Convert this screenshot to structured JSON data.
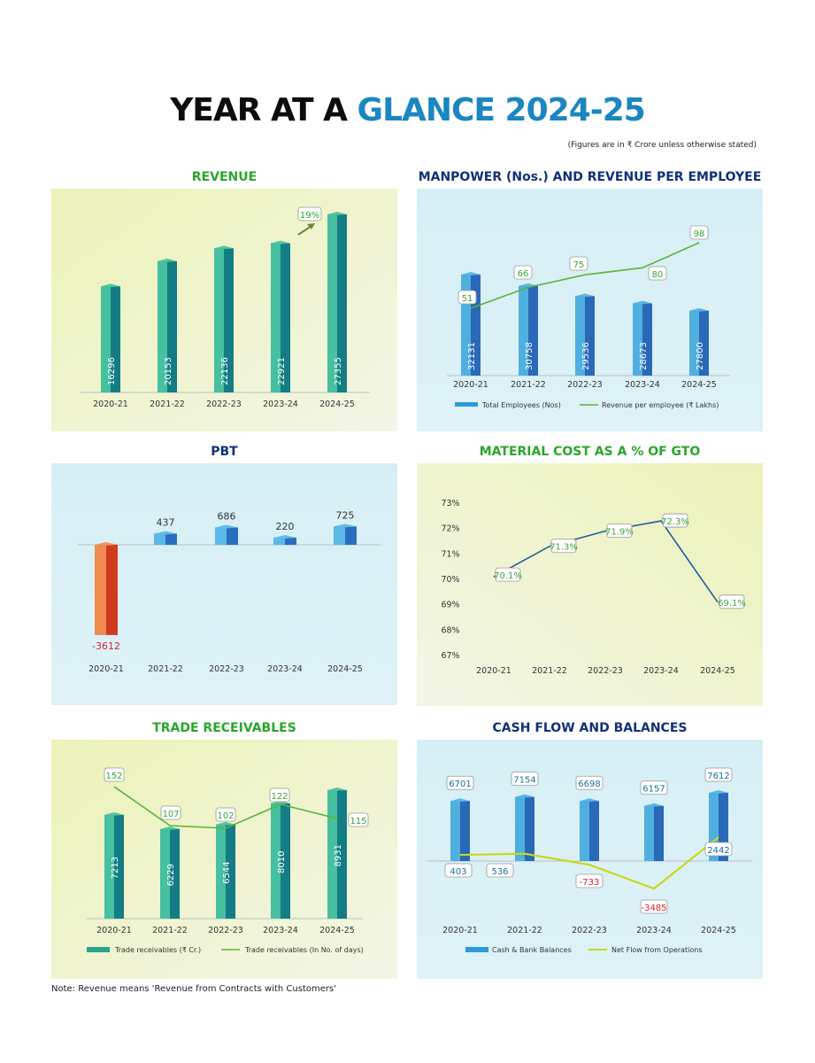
{
  "header": {
    "title_part1": "YEAR AT A ",
    "title_part2": "GLANCE 2024-25",
    "units_note": "(Figures are in ₹ Crore unless otherwise stated)"
  },
  "footnote": "Note: Revenue means 'Revenue from Contracts with Customers'",
  "colors": {
    "title_green": "#2aa62a",
    "title_navy": "#12307a",
    "accent_blue": "#1b86c0",
    "negative_red": "#e0202a",
    "teal_bar": "#2aa38f",
    "blue_bar": "#2f8fd0",
    "orange_bar": "#e0552a",
    "line_green": "#5bb33a",
    "line_lime": "#c8d81c",
    "line_blue": "#1c5fa0"
  },
  "chart_data": [
    {
      "id": "revenue",
      "type": "bar",
      "title": "REVENUE",
      "categories": [
        "2020-21",
        "2021-22",
        "2022-23",
        "2023-24",
        "2024-25"
      ],
      "values": [
        16296,
        20153,
        22136,
        22921,
        27355
      ],
      "value_labels": [
        "16296",
        "20153",
        "22136",
        "22921",
        "27355"
      ],
      "annotation": "19%"
    },
    {
      "id": "manpower",
      "type": "bar+line",
      "title": "MANPOWER (Nos.) AND REVENUE PER EMPLOYEE",
      "categories": [
        "2020-21",
        "2021-22",
        "2022-23",
        "2023-24",
        "2024-25"
      ],
      "series": [
        {
          "name": "Total Employees (Nos)",
          "type": "bar",
          "values": [
            32131,
            30758,
            29536,
            28673,
            27800
          ],
          "value_labels": [
            "32131",
            "30758",
            "29536",
            "28673",
            "27800"
          ]
        },
        {
          "name": "Revenue per employee (₹ Lakhs)",
          "type": "line",
          "values": [
            51,
            66,
            75,
            80,
            98
          ],
          "value_labels": [
            "51",
            "66",
            "75",
            "80",
            "98"
          ]
        }
      ],
      "legend": "bottom"
    },
    {
      "id": "pbt",
      "type": "bar",
      "title": "PBT",
      "categories": [
        "2020-21",
        "2021-22",
        "2022-23",
        "2023-24",
        "2024-25"
      ],
      "values": [
        -3612,
        437,
        686,
        220,
        725
      ],
      "value_labels": [
        "-3612",
        "437",
        "686",
        "220",
        "725"
      ]
    },
    {
      "id": "material",
      "type": "line",
      "title": "MATERIAL COST AS A % OF GTO",
      "categories": [
        "2020-21",
        "2021-22",
        "2022-23",
        "2023-24",
        "2024-25"
      ],
      "values": [
        70.1,
        71.3,
        71.9,
        72.3,
        69.1
      ],
      "value_labels": [
        "70.1%",
        "71.3%",
        "71.9%",
        "72.3%",
        "69.1%"
      ],
      "ylim": [
        67,
        73
      ],
      "yticks": [
        "67%",
        "68%",
        "69%",
        "70%",
        "71%",
        "72%",
        "73%"
      ]
    },
    {
      "id": "trade",
      "type": "bar+line",
      "title": "TRADE RECEIVABLES",
      "categories": [
        "2020-21",
        "2021-22",
        "2022-23",
        "2023-24",
        "2024-25"
      ],
      "series": [
        {
          "name": "Trade receivables (₹ Cr.)",
          "type": "bar",
          "values": [
            7213,
            6229,
            6544,
            8010,
            8931
          ],
          "value_labels": [
            "7213",
            "6229",
            "6544",
            "8010",
            "8931"
          ]
        },
        {
          "name": "Trade receivables (In No. of days)",
          "type": "line",
          "values": [
            152,
            107,
            102,
            122,
            115
          ],
          "value_labels": [
            "152",
            "107",
            "102",
            "122",
            "115"
          ]
        }
      ],
      "legend": "bottom"
    },
    {
      "id": "cash",
      "type": "bar+line",
      "title": "CASH FLOW AND BALANCES",
      "categories": [
        "2020-21",
        "2021-22",
        "2022-23",
        "2023-24",
        "2024-25"
      ],
      "series": [
        {
          "name": "Cash & Bank Balances",
          "type": "bar",
          "values": [
            6701,
            7154,
            6698,
            6157,
            7612
          ],
          "value_labels": [
            "6701",
            "7154",
            "6698",
            "6157",
            "7612"
          ]
        },
        {
          "name": "Net Flow from Operations",
          "type": "line",
          "values": [
            403,
            536,
            -733,
            -3485,
            2442
          ],
          "value_labels": [
            "403",
            "536",
            "-733",
            "-3485",
            "2442"
          ]
        }
      ],
      "legend": "bottom"
    }
  ]
}
